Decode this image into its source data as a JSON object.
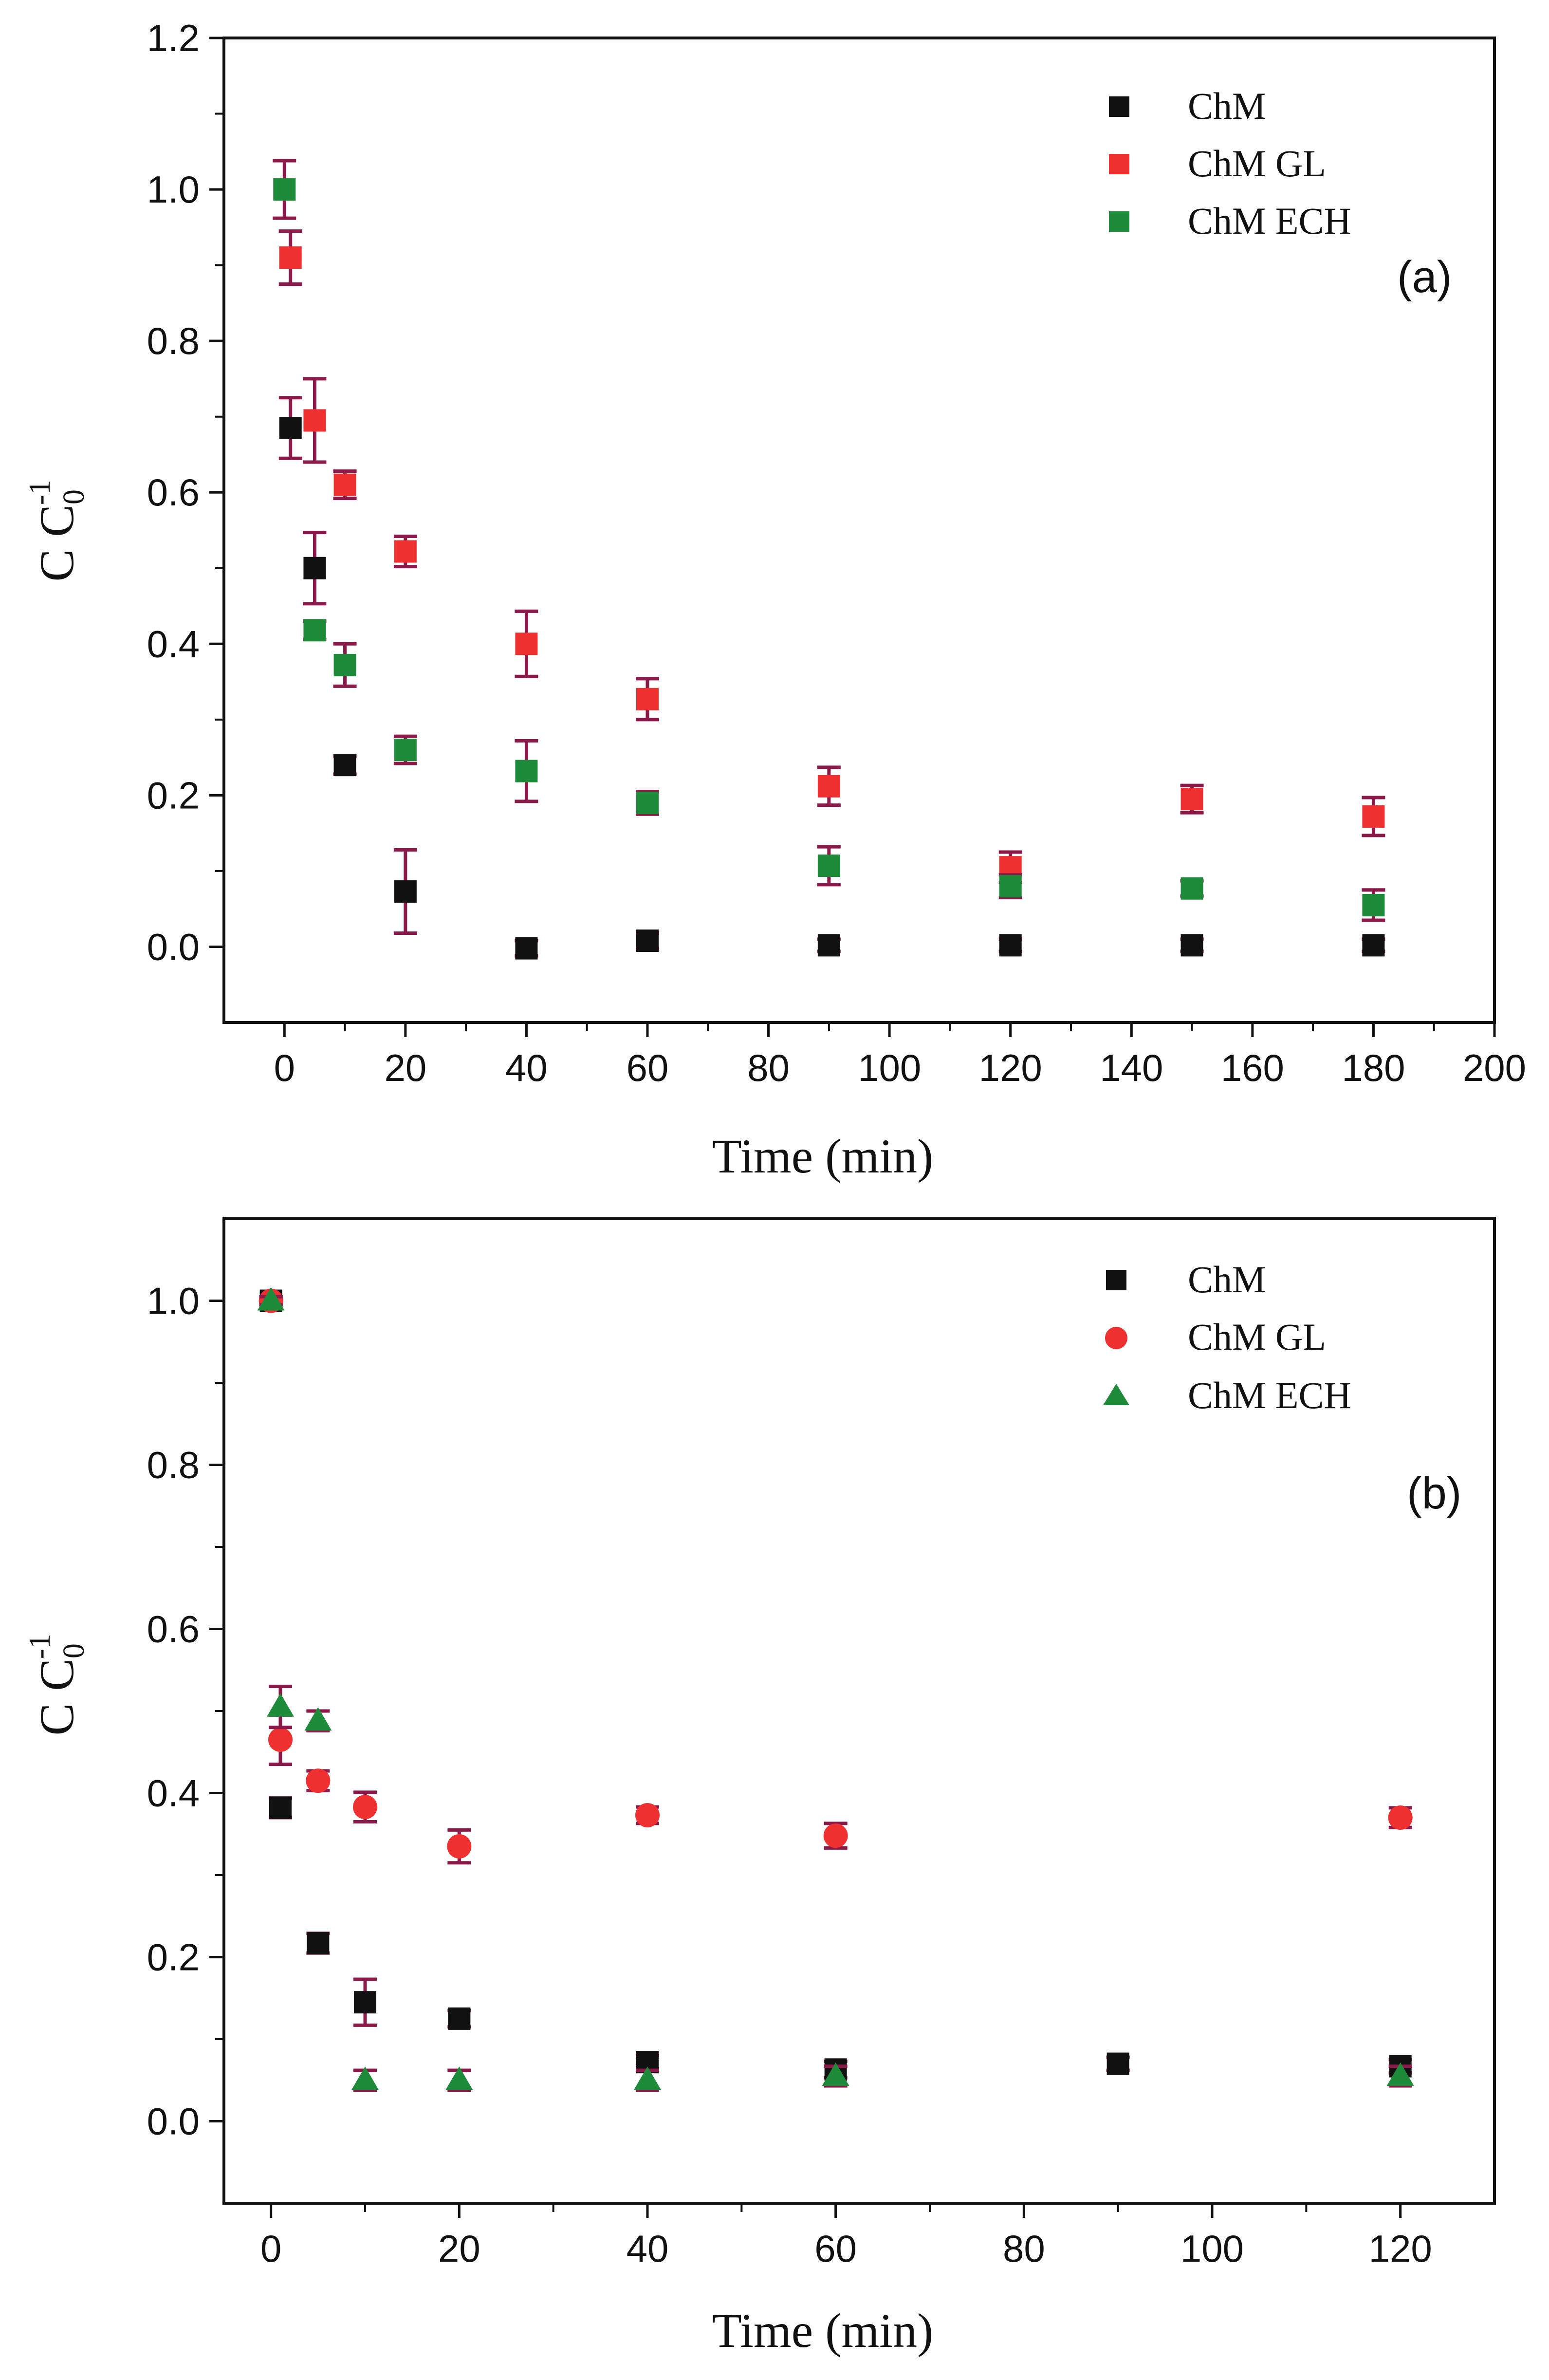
{
  "chart_data": [
    {
      "type": "scatter",
      "panel_label": "(a)",
      "xlabel": "Time (min)",
      "ylabel_main": "C C",
      "ylabel_sub": "0",
      "ylabel_sup": "-1",
      "xlim": [
        -10,
        200
      ],
      "ylim": [
        -0.1,
        1.2
      ],
      "xticks": [
        0,
        20,
        40,
        60,
        80,
        100,
        120,
        140,
        160,
        180,
        200
      ],
      "yticks": [
        0.0,
        0.2,
        0.4,
        0.6,
        0.8,
        1.0,
        1.2
      ],
      "xtick_labels": [
        "0",
        "20",
        "40",
        "60",
        "80",
        "100",
        "120",
        "140",
        "160",
        "180",
        "200"
      ],
      "ytick_labels": [
        "0.0",
        "0.2",
        "0.4",
        "0.6",
        "0.8",
        "1.0",
        "1.2"
      ],
      "legend_position": "top-right",
      "errorbar_color": "#8b1a4a",
      "series": [
        {
          "name": "ChM",
          "marker": "square",
          "color": "#111111",
          "points": [
            {
              "x": 1,
              "y": 0.685,
              "err": 0.04
            },
            {
              "x": 5,
              "y": 0.5,
              "err": 0.047
            },
            {
              "x": 10,
              "y": 0.24,
              "err": 0.012
            },
            {
              "x": 20,
              "y": 0.073,
              "err": 0.055
            },
            {
              "x": 40,
              "y": -0.002,
              "err": 0.01
            },
            {
              "x": 60,
              "y": 0.008,
              "err": 0.01
            },
            {
              "x": 90,
              "y": 0.002,
              "err": 0.008
            },
            {
              "x": 120,
              "y": 0.002,
              "err": 0.008
            },
            {
              "x": 150,
              "y": 0.002,
              "err": 0.008
            },
            {
              "x": 180,
              "y": 0.002,
              "err": 0.008
            }
          ]
        },
        {
          "name": "ChM GL",
          "marker": "square",
          "color": "#ee3030",
          "points": [
            {
              "x": 1,
              "y": 0.91,
              "err": 0.035
            },
            {
              "x": 5,
              "y": 0.695,
              "err": 0.055
            },
            {
              "x": 10,
              "y": 0.61,
              "err": 0.018
            },
            {
              "x": 20,
              "y": 0.522,
              "err": 0.02
            },
            {
              "x": 40,
              "y": 0.4,
              "err": 0.043
            },
            {
              "x": 60,
              "y": 0.327,
              "err": 0.027
            },
            {
              "x": 90,
              "y": 0.212,
              "err": 0.025
            },
            {
              "x": 120,
              "y": 0.105,
              "err": 0.02
            },
            {
              "x": 150,
              "y": 0.195,
              "err": 0.018
            },
            {
              "x": 180,
              "y": 0.172,
              "err": 0.025
            }
          ]
        },
        {
          "name": "ChM ECH",
          "marker": "square",
          "color": "#1e8b3a",
          "points": [
            {
              "x": 0,
              "y": 1.0,
              "err": 0.038
            },
            {
              "x": 5,
              "y": 0.418,
              "err": 0.012
            },
            {
              "x": 10,
              "y": 0.372,
              "err": 0.028
            },
            {
              "x": 20,
              "y": 0.26,
              "err": 0.018
            },
            {
              "x": 40,
              "y": 0.232,
              "err": 0.04
            },
            {
              "x": 60,
              "y": 0.19,
              "err": 0.015
            },
            {
              "x": 90,
              "y": 0.107,
              "err": 0.025
            },
            {
              "x": 120,
              "y": 0.08,
              "err": 0.015
            },
            {
              "x": 150,
              "y": 0.077,
              "err": 0.01
            },
            {
              "x": 180,
              "y": 0.055,
              "err": 0.02
            }
          ]
        }
      ]
    },
    {
      "type": "scatter",
      "panel_label": "(b)",
      "xlabel": "Time (min)",
      "ylabel_main": "C C",
      "ylabel_sub": "0",
      "ylabel_sup": "-1",
      "xlim": [
        -5,
        130
      ],
      "ylim": [
        -0.1,
        1.1
      ],
      "xticks": [
        0,
        20,
        40,
        60,
        80,
        100,
        120
      ],
      "yticks": [
        0.0,
        0.2,
        0.4,
        0.6,
        0.8,
        1.0
      ],
      "xtick_labels": [
        "0",
        "20",
        "40",
        "60",
        "80",
        "100",
        "120"
      ],
      "ytick_labels": [
        "0.0",
        "0.2",
        "0.4",
        "0.6",
        "0.8",
        "1.0"
      ],
      "legend_position": "top-right",
      "errorbar_color": "#8b1a4a",
      "series": [
        {
          "name": "ChM",
          "marker": "square",
          "color": "#111111",
          "points": [
            {
              "x": 0,
              "y": 1.0,
              "err": 0.005
            },
            {
              "x": 1,
              "y": 0.382,
              "err": 0.012
            },
            {
              "x": 5,
              "y": 0.217,
              "err": 0.012
            },
            {
              "x": 10,
              "y": 0.145,
              "err": 0.028
            },
            {
              "x": 20,
              "y": 0.125,
              "err": 0.01
            },
            {
              "x": 40,
              "y": 0.072,
              "err": 0.008
            },
            {
              "x": 60,
              "y": 0.063,
              "err": 0.01
            },
            {
              "x": 90,
              "y": 0.07,
              "err": 0.008
            },
            {
              "x": 120,
              "y": 0.067,
              "err": 0.008
            }
          ]
        },
        {
          "name": "ChM GL",
          "marker": "circle",
          "color": "#ee3030",
          "points": [
            {
              "x": 0,
              "y": 1.0,
              "err": 0.005
            },
            {
              "x": 1,
              "y": 0.465,
              "err": 0.03
            },
            {
              "x": 5,
              "y": 0.415,
              "err": 0.012
            },
            {
              "x": 10,
              "y": 0.383,
              "err": 0.018
            },
            {
              "x": 20,
              "y": 0.335,
              "err": 0.02
            },
            {
              "x": 40,
              "y": 0.373,
              "err": 0.01
            },
            {
              "x": 60,
              "y": 0.348,
              "err": 0.015
            },
            {
              "x": 120,
              "y": 0.37,
              "err": 0.012
            }
          ]
        },
        {
          "name": "ChM ECH",
          "marker": "triangle",
          "color": "#1e8b3a",
          "points": [
            {
              "x": 0,
              "y": 1.0,
              "err": 0.005
            },
            {
              "x": 1,
              "y": 0.505,
              "err": 0.025
            },
            {
              "x": 5,
              "y": 0.488,
              "err": 0.012
            },
            {
              "x": 10,
              "y": 0.05,
              "err": 0.012
            },
            {
              "x": 20,
              "y": 0.05,
              "err": 0.012
            },
            {
              "x": 40,
              "y": 0.05,
              "err": 0.012
            },
            {
              "x": 60,
              "y": 0.055,
              "err": 0.012
            },
            {
              "x": 120,
              "y": 0.055,
              "err": 0.012
            }
          ]
        }
      ]
    }
  ]
}
